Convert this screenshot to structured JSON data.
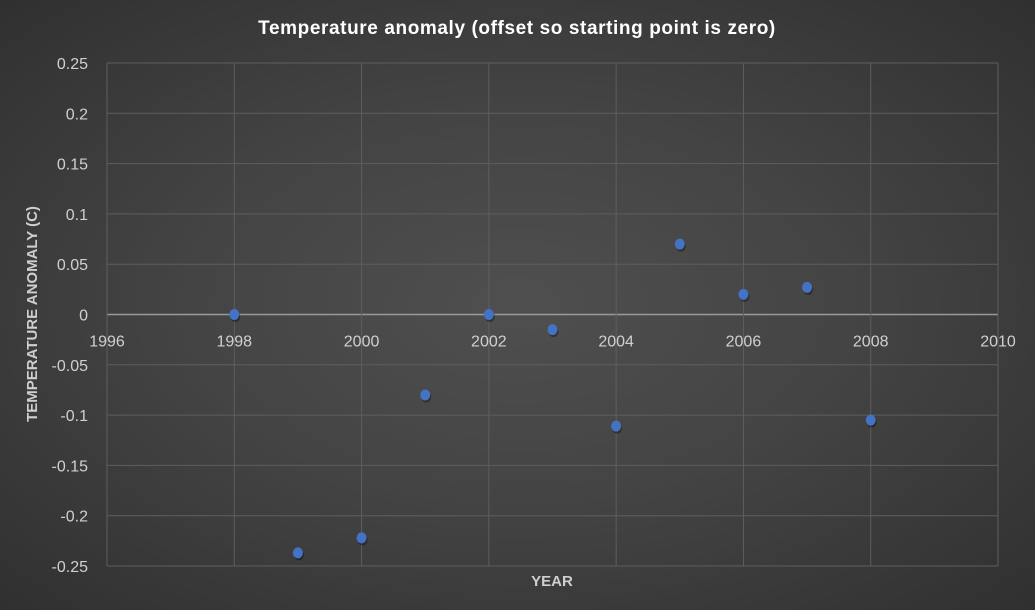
{
  "chart_data": {
    "type": "scatter",
    "title": "Temperature anomaly (offset so starting point is zero)",
    "xlabel": "YEAR",
    "ylabel": "TEMPERATURE ANOMALY (C)",
    "xlim": [
      1996,
      2010
    ],
    "ylim": [
      -0.25,
      0.25
    ],
    "x_ticks": [
      1996,
      1998,
      2000,
      2002,
      2004,
      2006,
      2008,
      2010
    ],
    "y_ticks": [
      0.25,
      0.2,
      0.15,
      0.1,
      0.05,
      0,
      -0.05,
      -0.1,
      -0.15,
      -0.2,
      -0.25
    ],
    "grid": true,
    "marker_color": "#4472c4",
    "series": [
      {
        "name": "Temperature anomaly",
        "x": [
          1998,
          1999,
          2000,
          2001,
          2002,
          2003,
          2004,
          2005,
          2006,
          2007,
          2008
        ],
        "y": [
          0,
          -0.237,
          -0.222,
          -0.08,
          0,
          -0.015,
          -0.111,
          0.07,
          0.02,
          0.027,
          -0.105
        ]
      }
    ]
  }
}
